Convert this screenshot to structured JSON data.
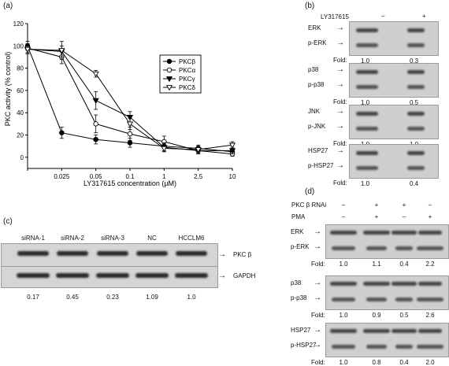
{
  "panel_labels": {
    "a": "(a)",
    "b": "(b)",
    "c": "(c)",
    "d": "(d)"
  },
  "chart_data": {
    "type": "line",
    "title": "",
    "xlabel": "LY317615 concentration (µM)",
    "ylabel": "PKC activity (% control)",
    "categories": [
      "",
      "0.025",
      "0.05",
      "0.1",
      "1",
      "2.5",
      "10"
    ],
    "ylim": [
      -10,
      120
    ],
    "yticks": [
      0,
      20,
      40,
      60,
      80,
      100,
      120
    ],
    "legend_position": "top-right",
    "series": [
      {
        "name": "PKCβ",
        "marker": "filled-circle",
        "values": [
          100,
          22,
          16,
          13,
          10,
          8,
          5
        ],
        "errors": [
          4,
          5,
          4,
          4,
          4,
          3,
          3
        ]
      },
      {
        "name": "PKCα",
        "marker": "open-circle",
        "values": [
          98,
          90,
          30,
          21,
          14,
          6,
          3
        ],
        "errors": [
          4,
          6,
          8,
          6,
          5,
          3,
          2
        ]
      },
      {
        "name": "PKCγ",
        "marker": "filled-triangle-down",
        "values": [
          97,
          95,
          51,
          36,
          9,
          6,
          6
        ],
        "errors": [
          4,
          5,
          8,
          5,
          4,
          3,
          3
        ]
      },
      {
        "name": "PKCδ",
        "marker": "open-triangle-down",
        "values": [
          97,
          96,
          75,
          30,
          8,
          7,
          11
        ],
        "errors": [
          4,
          8,
          3,
          5,
          3,
          3,
          3
        ]
      }
    ]
  },
  "panel_b": {
    "treatment_label": "LY317615",
    "minus": "–",
    "plus": "+",
    "fold_label": "Fold:",
    "blots": [
      {
        "top_label": "ERK",
        "bottom_label": "p-ERK",
        "folds": [
          "1.0",
          "0.3"
        ]
      },
      {
        "top_label": "p38",
        "bottom_label": "p-p38",
        "folds": [
          "1.0",
          "0.5"
        ]
      },
      {
        "top_label": "JNK",
        "bottom_label": "p-JNK",
        "folds": [
          "1.0",
          "1.0"
        ]
      },
      {
        "top_label": "HSP27",
        "bottom_label": "p-HSP27",
        "folds": [
          "1.0",
          "0.4"
        ]
      }
    ]
  },
  "panel_c": {
    "lanes": [
      "siRNA-1",
      "siRNA-2",
      "siRNA-3",
      "NC",
      "HCCLM6"
    ],
    "band1_label": "PKC β",
    "band2_label": "GAPDH",
    "values": [
      "0.17",
      "0.45",
      "0.23",
      "1.09",
      "1.0"
    ]
  },
  "panel_d": {
    "row1_label": "PKC β RNAi",
    "row1_signs": [
      "–",
      "+",
      "+",
      "–"
    ],
    "row2_label": "PMA",
    "row2_signs": [
      "–",
      "+",
      "–",
      "+"
    ],
    "fold_label": "Fold:",
    "blots": [
      {
        "top_label": "ERK",
        "bottom_label": "p-ERK",
        "folds": [
          "1.0",
          "1.1",
          "0.4",
          "2.2"
        ]
      },
      {
        "top_label": "p38",
        "bottom_label": "p-p38",
        "folds": [
          "1.0",
          "0.9",
          "0.5",
          "2.6"
        ]
      },
      {
        "top_label": "HSP27",
        "bottom_label": "p-HSP27",
        "folds": [
          "1.0",
          "0.8",
          "0.4",
          "2.0"
        ]
      }
    ]
  }
}
